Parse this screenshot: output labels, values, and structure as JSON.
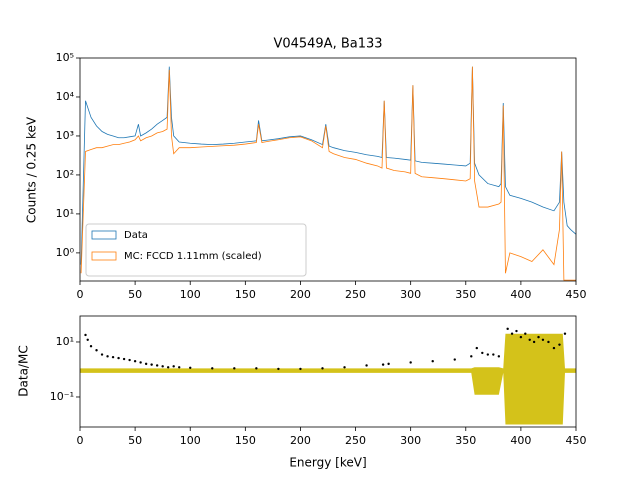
{
  "chart_data": [
    {
      "type": "line",
      "title": "V04549A, Ba133",
      "y_label": "Counts / 0.25 keV",
      "log_y": true,
      "legend": "lower left",
      "x": [
        1,
        5,
        10,
        15,
        20,
        25,
        30,
        35,
        40,
        45,
        50,
        53,
        55,
        60,
        65,
        70,
        75,
        79,
        81,
        83,
        85,
        90,
        100,
        110,
        120,
        130,
        140,
        150,
        160,
        162,
        165,
        170,
        180,
        190,
        200,
        210,
        220,
        223,
        226,
        230,
        240,
        250,
        260,
        270,
        274,
        276,
        278,
        285,
        295,
        300,
        302,
        304,
        310,
        320,
        330,
        340,
        350,
        354,
        356,
        358,
        362,
        370,
        380,
        382,
        384,
        386,
        390,
        400,
        410,
        420,
        430,
        435,
        437,
        439,
        442,
        445,
        450
      ],
      "series": [
        {
          "name": "Data",
          "color": "#1f77b4",
          "values": [
            0.5,
            8000,
            3000,
            1800,
            1300,
            1100,
            1000,
            900,
            900,
            950,
            1000,
            2000,
            1000,
            1200,
            1500,
            2000,
            2500,
            3000,
            60000,
            3000,
            1000,
            700,
            650,
            620,
            600,
            620,
            650,
            700,
            750,
            2500,
            750,
            780,
            850,
            950,
            1000,
            800,
            600,
            2000,
            550,
            500,
            420,
            380,
            330,
            300,
            280,
            8000,
            280,
            270,
            250,
            240,
            20000,
            230,
            210,
            200,
            190,
            180,
            170,
            200,
            60000,
            200,
            100,
            60,
            50,
            60,
            7000,
            50,
            30,
            25,
            20,
            15,
            12,
            20,
            400,
            20,
            5,
            4,
            3
          ]
        },
        {
          "name": "MC: FCCD 1.11mm (scaled)",
          "color": "#ff7f0e",
          "values": [
            0.3,
            400,
            450,
            500,
            500,
            550,
            600,
            600,
            650,
            700,
            800,
            1000,
            750,
            900,
            1000,
            1200,
            1300,
            1500,
            50000,
            1000,
            350,
            500,
            500,
            520,
            540,
            560,
            580,
            620,
            680,
            2000,
            680,
            720,
            800,
            900,
            950,
            750,
            500,
            1800,
            400,
            350,
            280,
            250,
            200,
            170,
            150,
            8000,
            150,
            130,
            120,
            110,
            20000,
            110,
            90,
            85,
            80,
            75,
            70,
            80,
            60000,
            70,
            15,
            15,
            18,
            20,
            6000,
            0.3,
            1,
            0.8,
            0.6,
            1.2,
            0.5,
            4,
            400,
            0.2,
            0.2,
            0.2,
            0.2
          ]
        }
      ],
      "xlim": [
        0,
        450
      ],
      "xticks": [
        0,
        50,
        100,
        150,
        200,
        250,
        300,
        350,
        400,
        450
      ],
      "ylim": [
        0.19,
        100000
      ],
      "yticks": [
        {
          "value": 1,
          "label": "10⁰"
        },
        {
          "value": 10,
          "label": "10¹"
        },
        {
          "value": 100,
          "label": "10²"
        },
        {
          "value": 1000,
          "label": "10³"
        },
        {
          "value": 10000,
          "label": "10⁴"
        },
        {
          "value": 100000,
          "label": "10⁵"
        }
      ]
    },
    {
      "type": "scatter",
      "x_label": "Energy [keV]",
      "y_label": "Data/MC",
      "log_y": true,
      "color": "#000000",
      "x": [
        5,
        7,
        10,
        15,
        20,
        25,
        30,
        35,
        40,
        45,
        50,
        55,
        60,
        65,
        70,
        75,
        80,
        85,
        90,
        100,
        120,
        140,
        160,
        180,
        200,
        220,
        240,
        260,
        275,
        280,
        300,
        320,
        340,
        355,
        360,
        365,
        370,
        375,
        380,
        388,
        392,
        396,
        400,
        404,
        408,
        412,
        416,
        420,
        425,
        430,
        435,
        440
      ],
      "values": [
        18,
        12,
        7,
        5,
        3.5,
        3,
        2.8,
        2.6,
        2.4,
        2.2,
        2,
        1.8,
        1.6,
        1.5,
        1.4,
        1.3,
        1.2,
        1.3,
        1.2,
        1.15,
        1.1,
        1.1,
        1.1,
        1.05,
        1.05,
        1.1,
        1.2,
        1.4,
        1.5,
        1.6,
        1.8,
        2,
        2.3,
        3,
        6,
        4,
        3.5,
        3.5,
        3,
        30,
        20,
        25,
        15,
        20,
        12,
        10,
        15,
        12,
        10,
        6,
        8,
        20
      ],
      "band": {
        "color": "#d4c21a",
        "x": [
          0,
          355,
          358,
          380,
          384,
          386,
          438,
          440,
          450
        ],
        "low": [
          0.75,
          0.75,
          0.12,
          0.12,
          0.75,
          0.01,
          0.01,
          0.75,
          0.75
        ],
        "high": [
          1.1,
          1.1,
          1.2,
          1.2,
          1.1,
          20,
          20,
          1.1,
          1.1
        ]
      },
      "xlim": [
        0,
        450
      ],
      "xticks": [
        0,
        50,
        100,
        150,
        200,
        250,
        300,
        350,
        400,
        450
      ],
      "ylim": [
        0.0081,
        88
      ],
      "yticks": [
        {
          "value": 0.1,
          "label": "10⁻¹"
        },
        {
          "value": 10,
          "label": "10¹"
        }
      ]
    }
  ]
}
